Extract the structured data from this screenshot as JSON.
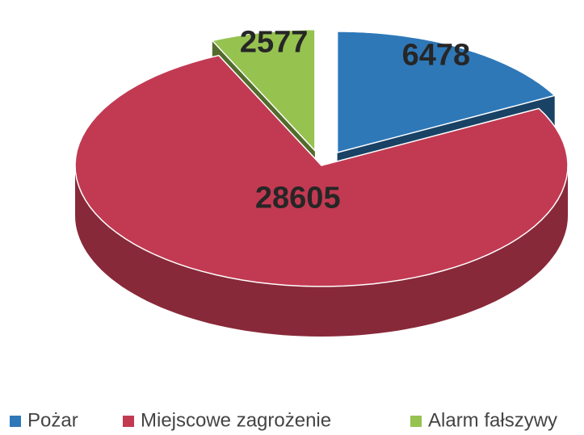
{
  "chart_data": {
    "type": "pie",
    "categories": [
      "Pożar",
      "Miejscowe zagrożenie",
      "Alarm fałszywy"
    ],
    "values": [
      6478,
      28605,
      2577
    ],
    "colors": [
      "#2e78b8",
      "#c23a52",
      "#96c250"
    ],
    "legend": "bottom"
  }
}
